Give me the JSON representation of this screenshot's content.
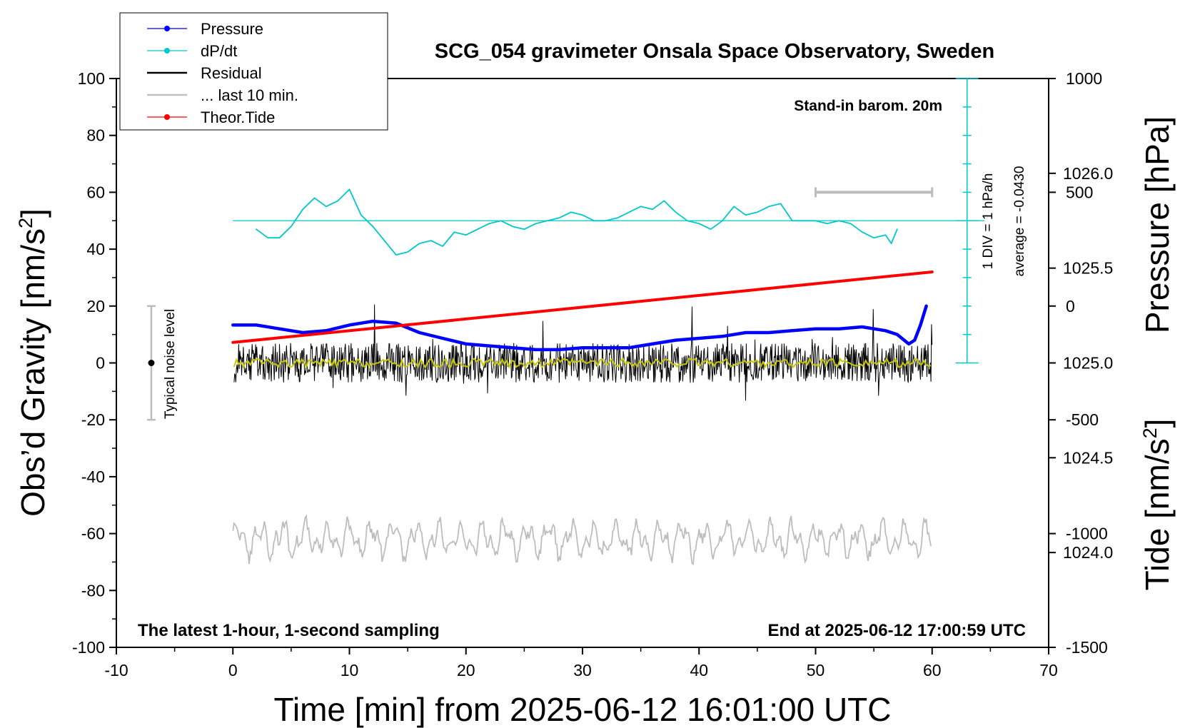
{
  "chart_data": {
    "type": "line",
    "title": "SCG_054 gravimeter Onsala Space Observatory, Sweden",
    "xlabel": "Time [min] from 2025-06-12 16:01:00 UTC",
    "ylabel_left_main": "Obs’d Gravity [nm/s",
    "ylabel_left_sup": "2",
    "ylabel_left_end": "]",
    "ylabel_right_pressure": "Pressure [hPa]",
    "ylabel_right_tide_main": "Tide [nm/s",
    "ylabel_right_tide_sup": "2",
    "ylabel_right_tide_end": "]",
    "xlim": [
      -10,
      70
    ],
    "ylim_left": [
      -100,
      100
    ],
    "ylim_pressure": [
      1023.5,
      1026.5
    ],
    "ylim_tide": [
      -1500,
      1000
    ],
    "x_ticks": [
      "-10",
      "0",
      "10",
      "20",
      "30",
      "40",
      "50",
      "60",
      "70"
    ],
    "x_tick_values": [
      -10,
      0,
      10,
      20,
      30,
      40,
      50,
      60,
      70
    ],
    "y_left_ticks": [
      "100",
      "80",
      "60",
      "40",
      "20",
      "0",
      "-20",
      "-40",
      "-60",
      "-80",
      "-100"
    ],
    "y_left_tick_values": [
      100,
      80,
      60,
      40,
      20,
      0,
      -20,
      -40,
      -60,
      -80,
      -100
    ],
    "pressure_ticks": [
      "1026.0",
      "1025.5",
      "1025.0",
      "1024.5",
      "1024.0"
    ],
    "pressure_tick_values": [
      1026.0,
      1025.5,
      1025.0,
      1024.5,
      1024.0
    ],
    "tide_ticks": [
      "1000",
      "500",
      "0",
      "-500",
      "-1000",
      "-1500"
    ],
    "tide_tick_values": [
      1000,
      500,
      0,
      -500,
      -1000,
      -1500
    ],
    "legend": [
      {
        "label": "Pressure",
        "color": "#0000ff",
        "marker": true
      },
      {
        "label": "dP/dt",
        "color": "#00c8c8",
        "marker": true
      },
      {
        "label": "Residual",
        "color": "#000000",
        "marker": false
      },
      {
        "label": "... last 10 min.",
        "color": "#c0c0c0",
        "marker": false
      },
      {
        "label": "Theor.Tide",
        "color": "#ff0000",
        "marker": true
      }
    ],
    "legend_position": "top-left",
    "annotations": {
      "stand_in": "Stand-in barom. 20m",
      "div": "1 DIV = 1 hPa/h",
      "average": "average = -0.0430",
      "noise": "Typical noise level",
      "latest": "The latest 1-hour, 1-second sampling",
      "end": "End at 2025-06-12 17:00:59 UTC"
    },
    "noise_bar": {
      "x": -7,
      "center": 0,
      "half_range": 20
    },
    "scale_bar_10min": {
      "x": [
        50,
        60
      ],
      "tide_level": 500
    },
    "series": [
      {
        "name": "Pressure",
        "axis": "pressure",
        "color": "#0000ff",
        "x": [
          0,
          2,
          4,
          6,
          8,
          10,
          12,
          14,
          16,
          18,
          20,
          22,
          24,
          26,
          28,
          30,
          32,
          34,
          36,
          38,
          40,
          42,
          44,
          46,
          48,
          50,
          52,
          54,
          56,
          57,
          58,
          58.5,
          59,
          59.5
        ],
        "y": [
          1025.2,
          1025.2,
          1025.18,
          1025.16,
          1025.17,
          1025.2,
          1025.22,
          1025.21,
          1025.16,
          1025.13,
          1025.1,
          1025.09,
          1025.08,
          1025.07,
          1025.07,
          1025.08,
          1025.08,
          1025.08,
          1025.1,
          1025.12,
          1025.13,
          1025.14,
          1025.16,
          1025.16,
          1025.17,
          1025.18,
          1025.18,
          1025.19,
          1025.17,
          1025.15,
          1025.1,
          1025.12,
          1025.2,
          1025.3
        ]
      },
      {
        "name": "dP/dt",
        "axis": "left",
        "color": "#00c8c8",
        "x": [
          2,
          3,
          4,
          5,
          6,
          7,
          8,
          9,
          10,
          11,
          12,
          13,
          14,
          15,
          16,
          17,
          18,
          19,
          20,
          21,
          22,
          23,
          24,
          25,
          26,
          27,
          28,
          29,
          30,
          31,
          32,
          33,
          34,
          35,
          36,
          37,
          38,
          39,
          40,
          41,
          42,
          43,
          44,
          45,
          46,
          47,
          48,
          49,
          50,
          51,
          52,
          53,
          54,
          55,
          56,
          56.5,
          57
        ],
        "y": [
          47,
          44,
          44,
          48,
          54,
          58,
          55,
          57,
          61,
          52,
          48,
          43,
          38,
          39,
          42,
          43,
          41,
          46,
          45,
          47,
          49,
          50,
          48,
          47,
          49,
          50,
          51,
          53,
          52,
          50,
          50,
          51,
          53,
          55,
          54,
          57,
          53,
          50,
          49,
          47,
          50,
          55,
          52,
          53,
          55,
          56,
          50,
          50,
          50,
          49,
          50,
          49,
          46,
          44,
          45,
          42,
          47
        ]
      },
      {
        "name": "Theor.Tide",
        "axis": "tide",
        "color": "#ff0000",
        "x": [
          0,
          60
        ],
        "y": [
          -160,
          150
        ]
      }
    ]
  }
}
